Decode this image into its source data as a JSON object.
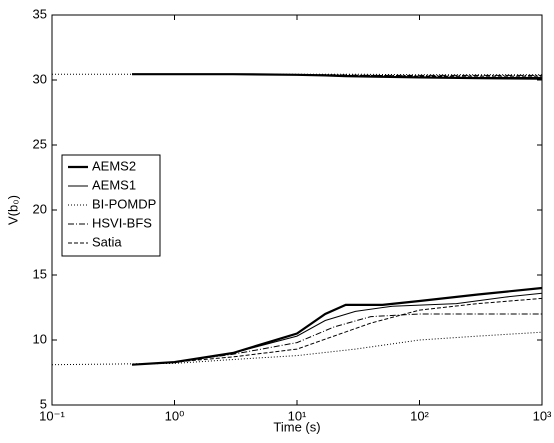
{
  "chart_data": {
    "type": "line",
    "xlabel": "Time (s)",
    "ylabel": "V(b₀)",
    "xscale": "log",
    "xlim": [
      0.1,
      1000
    ],
    "xticks": [
      {
        "value": 0.1,
        "label": "10⁻¹"
      },
      {
        "value": 1,
        "label": "10⁰"
      },
      {
        "value": 10,
        "label": "10¹"
      },
      {
        "value": 100,
        "label": "10²"
      },
      {
        "value": 1000,
        "label": "10³"
      }
    ],
    "ylim": [
      5,
      35
    ],
    "yticks": [
      5,
      10,
      15,
      20,
      25,
      30,
      35
    ],
    "legend": "upper left",
    "series": [
      {
        "name": "AEMS2",
        "color": "#000000",
        "width": 2.2,
        "dash": "none",
        "x": [
          0.45,
          1,
          3,
          10,
          17,
          25,
          50,
          100,
          300,
          1000
        ],
        "upper": [
          30.45,
          30.45,
          30.45,
          30.4,
          30.35,
          30.3,
          30.25,
          30.2,
          30.15,
          30.1
        ],
        "lower": [
          8.1,
          8.3,
          9,
          10.5,
          12,
          12.7,
          12.7,
          13,
          13.5,
          14
        ]
      },
      {
        "name": "AEMS1",
        "color": "#000000",
        "width": 1,
        "dash": "none",
        "x": [
          0.45,
          1,
          3,
          10,
          17,
          30,
          60,
          200,
          500,
          1000
        ],
        "upper": [
          30.45,
          30.45,
          30.45,
          30.4,
          30.35,
          30.3,
          30.25,
          30.2,
          30.2,
          30.2
        ],
        "lower": [
          8.1,
          8.3,
          9,
          10.3,
          11.5,
          12.2,
          12.6,
          12.8,
          13.3,
          13.6
        ]
      },
      {
        "name": "BI-POMDP",
        "color": "#000000",
        "width": 1,
        "dash": "1 2",
        "x": [
          0.1,
          1,
          3,
          10,
          30,
          100,
          300,
          1000
        ],
        "upper": [
          30.45,
          30.45,
          30.45,
          30.45,
          30.45,
          30.4,
          30.4,
          30.4
        ],
        "lower": [
          8.1,
          8.2,
          8.5,
          8.8,
          9.3,
          10,
          10.3,
          10.6
        ]
      },
      {
        "name": "HSVI-BFS",
        "color": "#000000",
        "width": 1,
        "dash": "6 2 1 2",
        "x": [
          0.45,
          1,
          3,
          10,
          20,
          40,
          100,
          1000
        ],
        "upper": [
          30.45,
          30.45,
          30.45,
          30.4,
          30.4,
          30.35,
          30.35,
          30.35
        ],
        "lower": [
          8.1,
          8.3,
          8.9,
          9.8,
          11,
          11.8,
          12,
          12
        ]
      },
      {
        "name": "Satia",
        "color": "#000000",
        "width": 1,
        "dash": "4 2",
        "x": [
          0.45,
          1,
          3,
          10,
          20,
          40,
          100,
          300,
          1000
        ],
        "upper": [
          30.45,
          30.45,
          30.45,
          30.4,
          30.35,
          30.35,
          30.3,
          30.3,
          30.3
        ],
        "lower": [
          8.1,
          8.3,
          8.7,
          9.3,
          10.3,
          11.3,
          12.3,
          12.8,
          13.2
        ]
      }
    ]
  }
}
